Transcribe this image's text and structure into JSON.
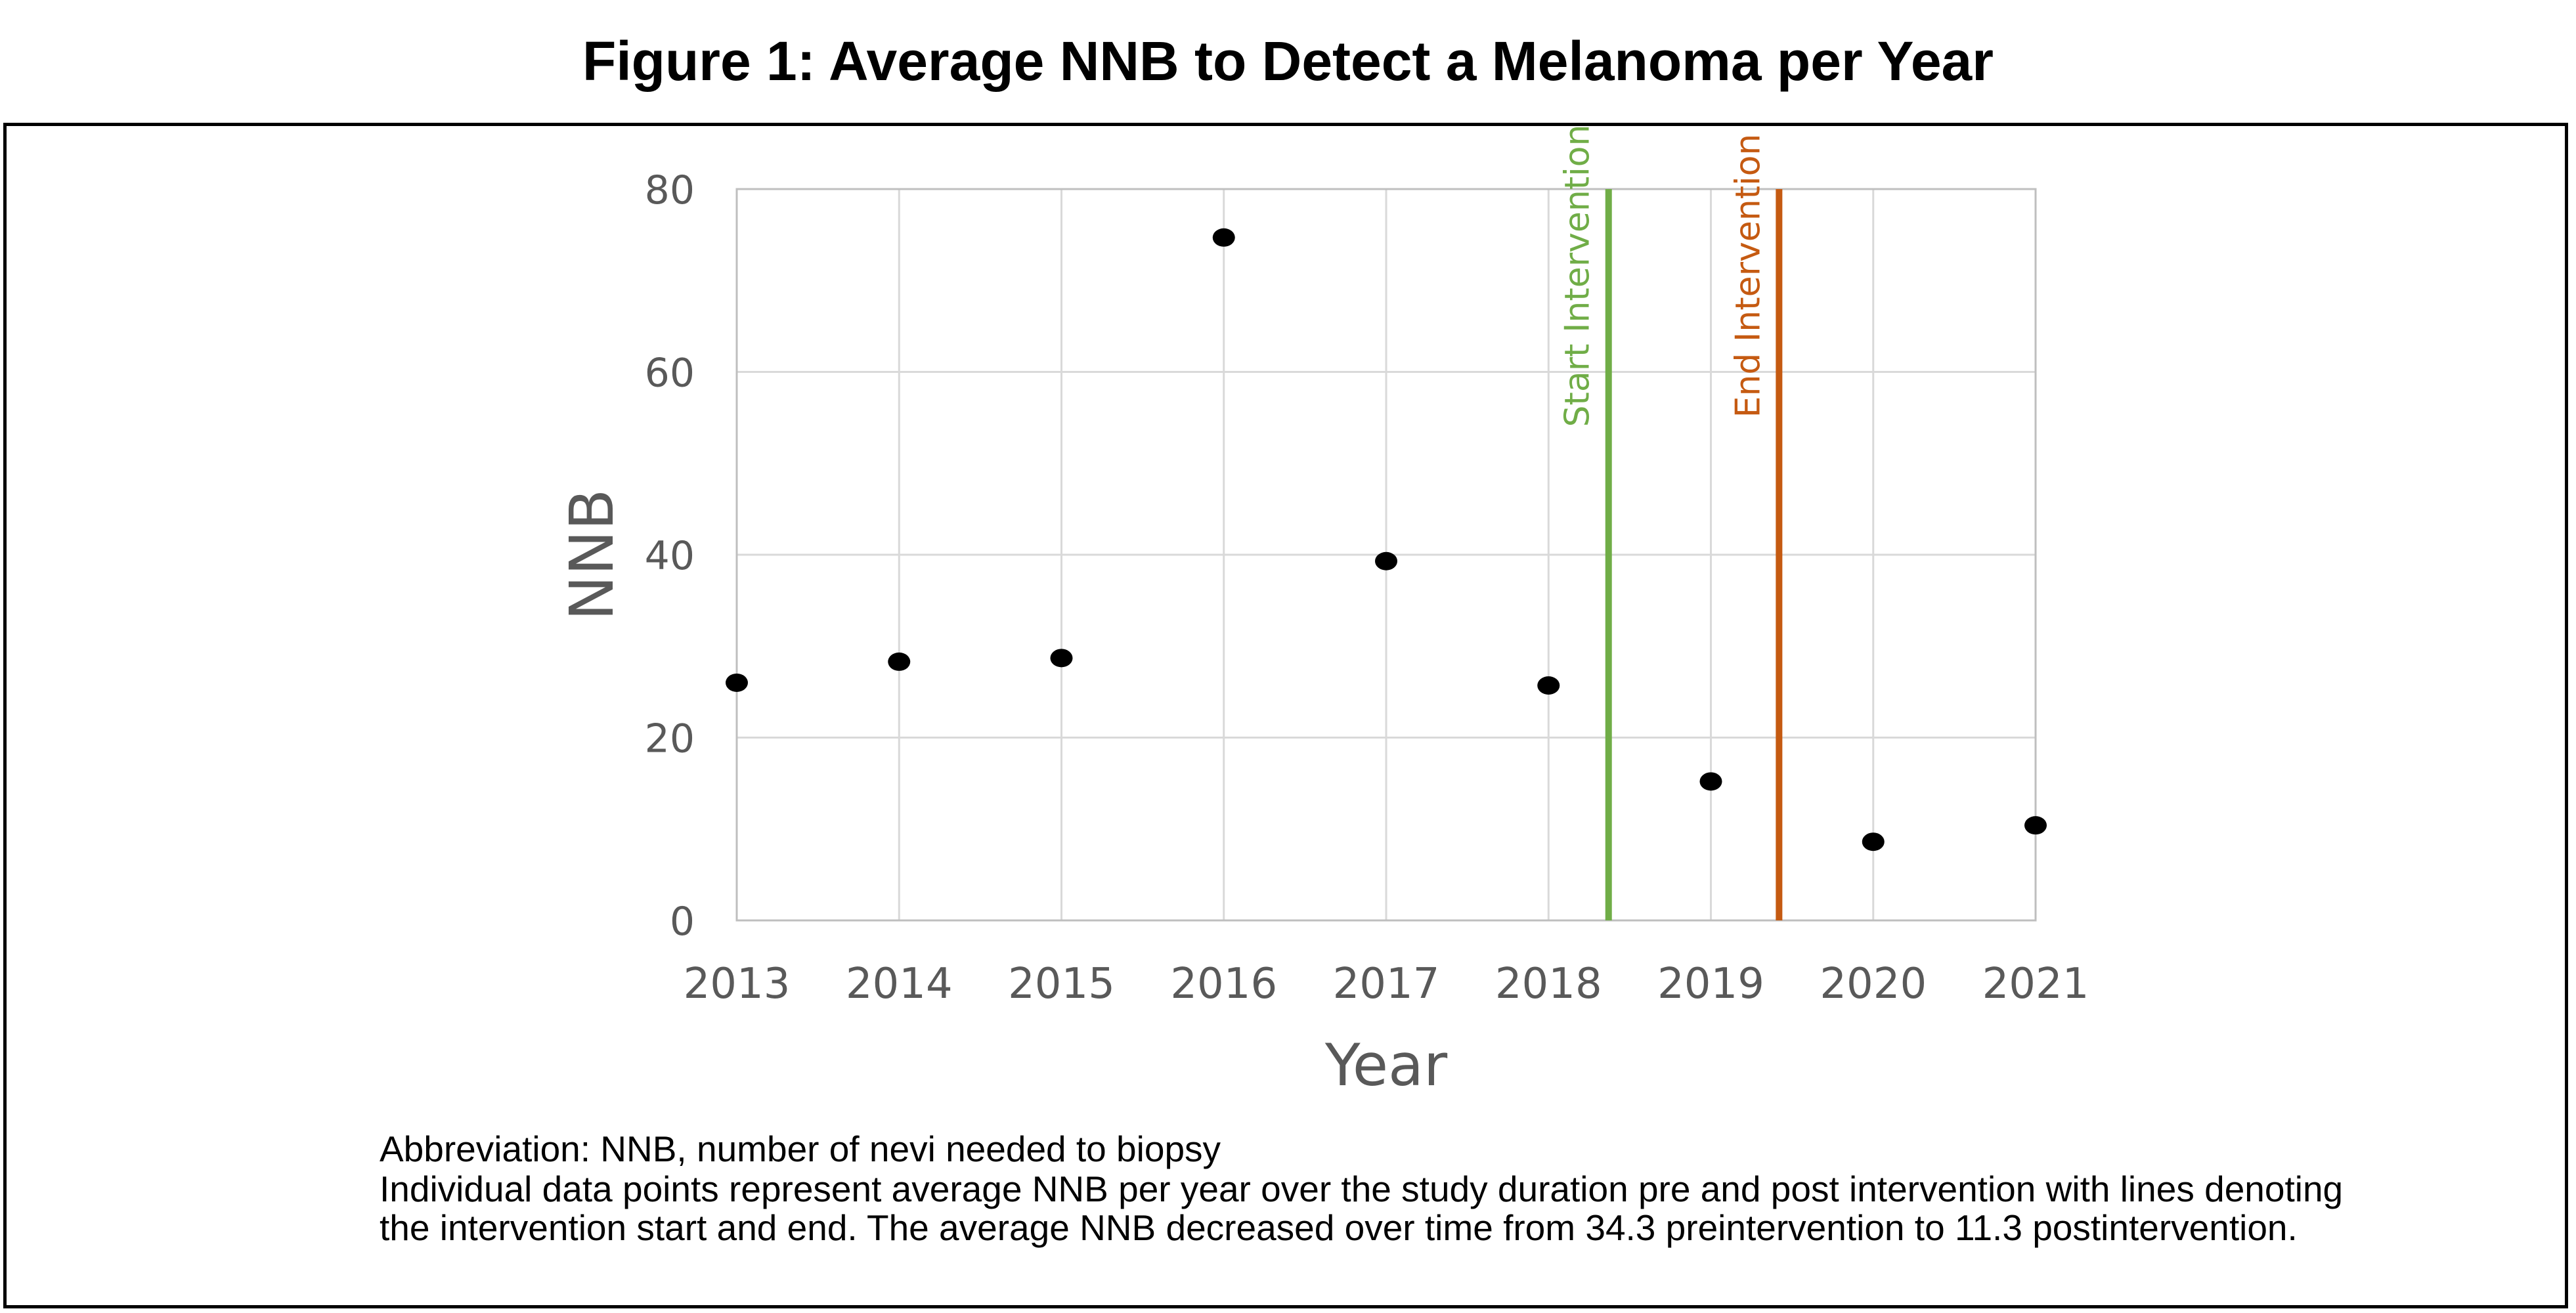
{
  "figure": {
    "title": "Figure 1: Average NNB to Detect a Melanoma per Year",
    "caption_abbreviation": "Abbreviation: NNB, number of nevi needed to biopsy",
    "caption_line1": "Individual data points represent average NNB per year over the study duration pre and post intervention with lines denoting",
    "caption_line2": "the intervention start and end. The average NNB decreased over time from 34.3 preintervention to 11.3 postintervention."
  },
  "chart_data": {
    "type": "scatter",
    "title": "",
    "xlabel": "Year",
    "ylabel": "NNB",
    "xlim": [
      2013,
      2021
    ],
    "ylim": [
      0,
      80
    ],
    "x_ticks": [
      "2013",
      "2014",
      "2015",
      "2016",
      "2017",
      "2018",
      "2019",
      "2020",
      "2021"
    ],
    "y_ticks": [
      "0",
      "20",
      "40",
      "60",
      "80"
    ],
    "grid": true,
    "legend": "none",
    "series": [
      {
        "x": [
          2013,
          2014,
          2015,
          2016,
          2017,
          2018,
          2019,
          2020,
          2021
        ],
        "y": [
          26.0,
          28.3,
          28.7,
          74.7,
          39.3,
          25.7,
          15.2,
          8.6,
          10.4
        ],
        "color": "#000000"
      }
    ],
    "annotations": [
      {
        "label": "Start Intervention",
        "x": 2018.37,
        "color": "#70ad47"
      },
      {
        "label": "End Intervention",
        "x": 2019.42,
        "color": "#c55a11"
      }
    ]
  }
}
